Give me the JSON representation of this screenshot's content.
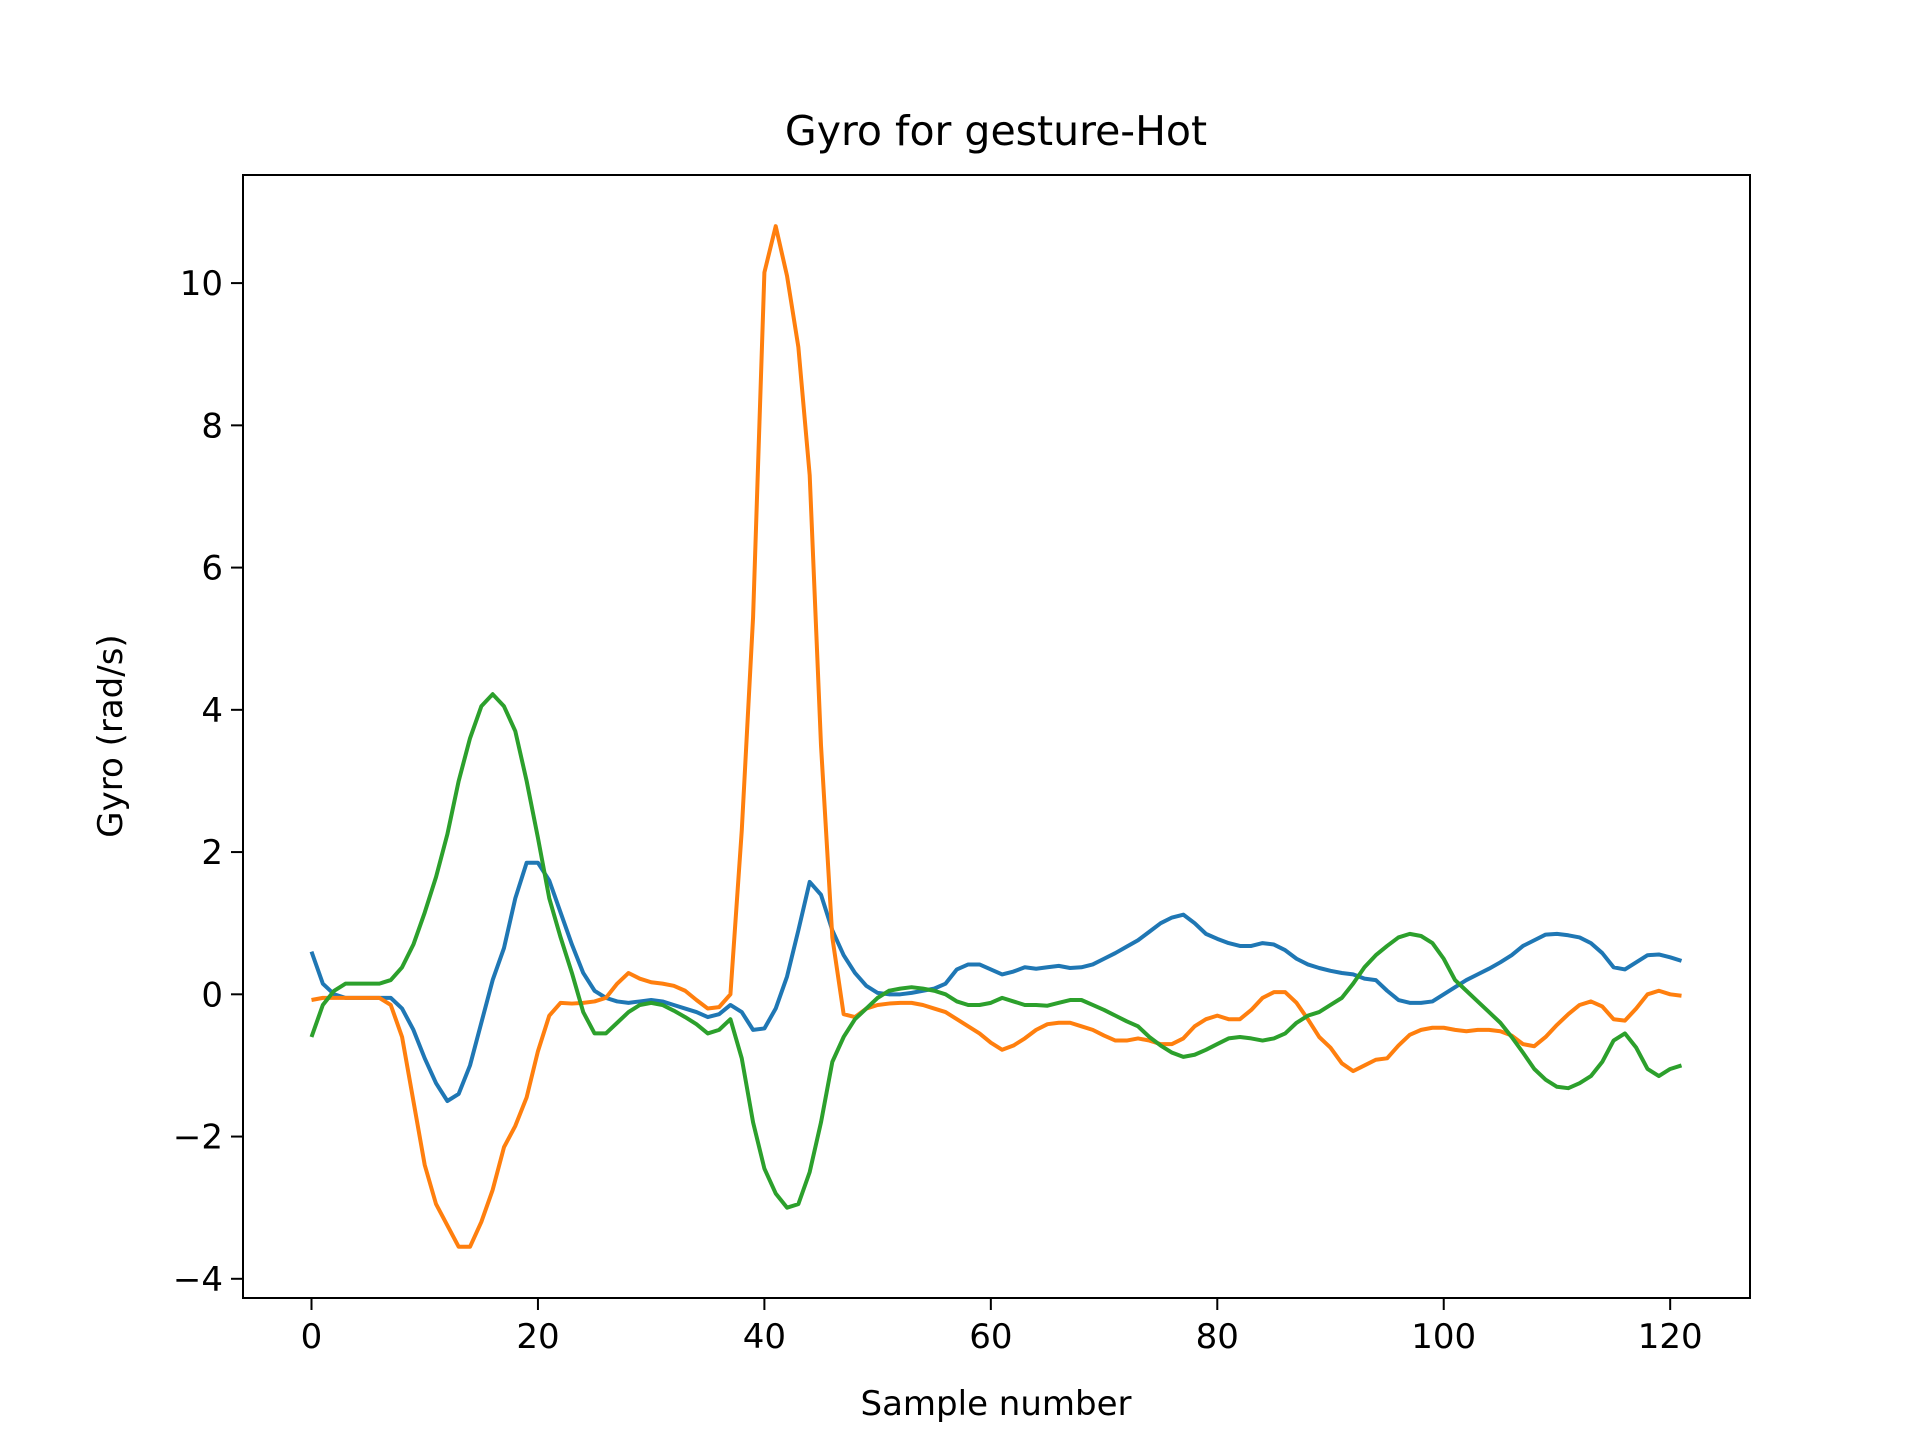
{
  "chart_data": {
    "type": "line",
    "title": "Gyro for gesture-Hot",
    "xlabel": "Sample number",
    "ylabel": "Gyro  (rad/s)",
    "x": [
      0,
      1,
      2,
      3,
      4,
      5,
      6,
      7,
      8,
      9,
      10,
      11,
      12,
      13,
      14,
      15,
      16,
      17,
      18,
      19,
      20,
      21,
      22,
      23,
      24,
      25,
      26,
      27,
      28,
      29,
      30,
      31,
      32,
      33,
      34,
      35,
      36,
      37,
      38,
      39,
      40,
      41,
      42,
      43,
      44,
      45,
      46,
      47,
      48,
      49,
      50,
      51,
      52,
      53,
      54,
      55,
      56,
      57,
      58,
      59,
      60,
      61,
      62,
      63,
      64,
      65,
      66,
      67,
      68,
      69,
      70,
      71,
      72,
      73,
      74,
      75,
      76,
      77,
      78,
      79,
      80,
      81,
      82,
      83,
      84,
      85,
      86,
      87,
      88,
      89,
      90,
      91,
      92,
      93,
      94,
      95,
      96,
      97,
      98,
      99,
      100,
      101,
      102,
      103,
      104,
      105,
      106,
      107,
      108,
      109,
      110,
      111,
      112,
      113,
      114,
      115,
      116,
      117,
      118,
      119,
      120,
      121
    ],
    "series": [
      {
        "color": "#1f77b4",
        "values": [
          0.6,
          0.15,
          0.0,
          -0.05,
          -0.05,
          -0.05,
          -0.05,
          -0.05,
          -0.2,
          -0.5,
          -0.9,
          -1.25,
          -1.5,
          -1.4,
          -1.0,
          -0.4,
          0.2,
          0.65,
          1.35,
          1.85,
          1.85,
          1.6,
          1.15,
          0.7,
          0.3,
          0.05,
          -0.05,
          -0.1,
          -0.12,
          -0.1,
          -0.08,
          -0.1,
          -0.15,
          -0.2,
          -0.25,
          -0.32,
          -0.28,
          -0.15,
          -0.25,
          -0.5,
          -0.48,
          -0.2,
          0.25,
          0.9,
          1.58,
          1.4,
          0.9,
          0.55,
          0.3,
          0.12,
          0.02,
          0.0,
          0.0,
          0.02,
          0.05,
          0.08,
          0.15,
          0.35,
          0.42,
          0.42,
          0.35,
          0.28,
          0.32,
          0.38,
          0.36,
          0.38,
          0.4,
          0.37,
          0.38,
          0.42,
          0.5,
          0.58,
          0.67,
          0.76,
          0.88,
          1.0,
          1.08,
          1.12,
          1.0,
          0.85,
          0.78,
          0.72,
          0.68,
          0.68,
          0.72,
          0.7,
          0.62,
          0.5,
          0.42,
          0.37,
          0.33,
          0.3,
          0.28,
          0.22,
          0.2,
          0.05,
          -0.08,
          -0.12,
          -0.12,
          -0.1,
          0.0,
          0.1,
          0.2,
          0.28,
          0.36,
          0.45,
          0.55,
          0.68,
          0.76,
          0.84,
          0.85,
          0.83,
          0.8,
          0.72,
          0.58,
          0.38,
          0.35,
          0.45,
          0.55,
          0.56,
          0.52,
          0.47
        ]
      },
      {
        "color": "#ff7f0e",
        "values": [
          -0.08,
          -0.05,
          -0.05,
          -0.05,
          -0.05,
          -0.05,
          -0.05,
          -0.15,
          -0.6,
          -1.5,
          -2.4,
          -2.95,
          -3.25,
          -3.55,
          -3.55,
          -3.2,
          -2.75,
          -2.15,
          -1.85,
          -1.45,
          -0.8,
          -0.3,
          -0.12,
          -0.13,
          -0.12,
          -0.1,
          -0.05,
          0.15,
          0.3,
          0.22,
          0.17,
          0.15,
          0.12,
          0.05,
          -0.08,
          -0.2,
          -0.18,
          0.0,
          2.3,
          5.3,
          10.15,
          10.8,
          10.1,
          9.1,
          7.3,
          3.5,
          0.8,
          -0.28,
          -0.32,
          -0.2,
          -0.15,
          -0.13,
          -0.12,
          -0.12,
          -0.15,
          -0.2,
          -0.25,
          -0.35,
          -0.45,
          -0.55,
          -0.68,
          -0.78,
          -0.72,
          -0.62,
          -0.5,
          -0.42,
          -0.4,
          -0.4,
          -0.45,
          -0.5,
          -0.58,
          -0.65,
          -0.65,
          -0.62,
          -0.65,
          -0.7,
          -0.7,
          -0.62,
          -0.45,
          -0.35,
          -0.3,
          -0.35,
          -0.35,
          -0.22,
          -0.05,
          0.03,
          0.03,
          -0.12,
          -0.35,
          -0.6,
          -0.75,
          -0.97,
          -1.08,
          -1.0,
          -0.92,
          -0.9,
          -0.72,
          -0.57,
          -0.5,
          -0.47,
          -0.47,
          -0.5,
          -0.52,
          -0.5,
          -0.5,
          -0.52,
          -0.58,
          -0.7,
          -0.73,
          -0.6,
          -0.43,
          -0.28,
          -0.15,
          -0.1,
          -0.17,
          -0.35,
          -0.37,
          -0.2,
          0.0,
          0.05,
          0.0,
          -0.02
        ]
      },
      {
        "color": "#2ca02c",
        "values": [
          -0.6,
          -0.15,
          0.05,
          0.15,
          0.15,
          0.15,
          0.15,
          0.2,
          0.38,
          0.7,
          1.15,
          1.65,
          2.25,
          3.0,
          3.6,
          4.05,
          4.22,
          4.05,
          3.7,
          3.0,
          2.2,
          1.35,
          0.8,
          0.3,
          -0.25,
          -0.55,
          -0.55,
          -0.4,
          -0.25,
          -0.15,
          -0.12,
          -0.15,
          -0.23,
          -0.32,
          -0.42,
          -0.55,
          -0.5,
          -0.35,
          -0.9,
          -1.8,
          -2.45,
          -2.8,
          -3.0,
          -2.95,
          -2.5,
          -1.8,
          -0.95,
          -0.6,
          -0.35,
          -0.2,
          -0.05,
          0.05,
          0.08,
          0.1,
          0.08,
          0.05,
          0.0,
          -0.1,
          -0.15,
          -0.15,
          -0.12,
          -0.05,
          -0.1,
          -0.15,
          -0.15,
          -0.16,
          -0.12,
          -0.08,
          -0.08,
          -0.15,
          -0.22,
          -0.3,
          -0.38,
          -0.45,
          -0.6,
          -0.72,
          -0.82,
          -0.88,
          -0.85,
          -0.78,
          -0.7,
          -0.62,
          -0.6,
          -0.62,
          -0.65,
          -0.62,
          -0.55,
          -0.4,
          -0.3,
          -0.25,
          -0.15,
          -0.05,
          0.15,
          0.38,
          0.55,
          0.68,
          0.8,
          0.85,
          0.82,
          0.72,
          0.5,
          0.2,
          0.05,
          -0.1,
          -0.25,
          -0.4,
          -0.6,
          -0.82,
          -1.05,
          -1.2,
          -1.3,
          -1.32,
          -1.25,
          -1.15,
          -0.95,
          -0.65,
          -0.55,
          -0.75,
          -1.05,
          -1.15,
          -1.05,
          -1.0
        ]
      }
    ],
    "xlim": [
      -6.05,
      127.05
    ],
    "ylim": [
      -4.27,
      11.52
    ],
    "xticks": [
      0,
      20,
      40,
      60,
      80,
      100,
      120
    ],
    "yticks": [
      {
        "value": -4,
        "label": "−4"
      },
      {
        "value": -2,
        "label": "−2"
      },
      0,
      2,
      4,
      6,
      8,
      10
    ]
  }
}
